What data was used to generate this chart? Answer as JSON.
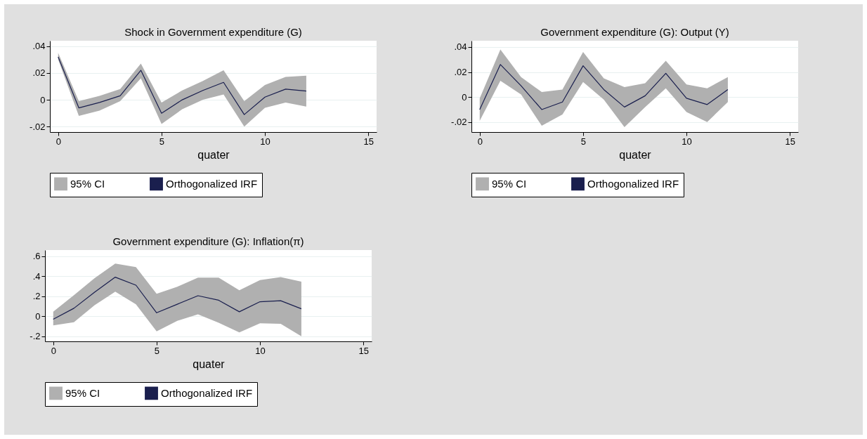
{
  "chart_data": [
    {
      "type": "line",
      "title": "Shock in Government expenditure (G)",
      "xlabel": "quater",
      "x": [
        0,
        1,
        2,
        3,
        4,
        5,
        6,
        7,
        8,
        9,
        10,
        11,
        12
      ],
      "xlim": [
        -0.4,
        15.4
      ],
      "xticks": [
        0,
        5,
        10,
        15
      ],
      "ylim": [
        -0.024,
        0.044
      ],
      "yticks": [
        {
          "value": -0.02,
          "label": "-.02"
        },
        {
          "value": 0,
          "label": "0"
        },
        {
          "value": 0.02,
          "label": ".02"
        },
        {
          "value": 0.04,
          "label": ".04"
        }
      ],
      "grid": "y",
      "legend": "bottom",
      "annotations": [
        "95% CI"
      ],
      "series": [
        {
          "name": "Orthogonalized IRF",
          "type": "line",
          "color": "#1a1f4e",
          "values": [
            0.032,
            -0.006,
            -0.002,
            0.003,
            0.022,
            -0.01,
            0.0,
            0.007,
            0.013,
            -0.011,
            0.002,
            0.008,
            0.0065
          ],
          "lower": [
            0.03,
            -0.012,
            -0.008,
            -0.001,
            0.016,
            -0.018,
            -0.007,
            0.0,
            0.004,
            -0.02,
            -0.006,
            -0.002,
            -0.005
          ],
          "upper": [
            0.035,
            -0.001,
            0.003,
            0.008,
            0.027,
            -0.002,
            0.007,
            0.014,
            0.022,
            -0.001,
            0.011,
            0.017,
            0.018
          ]
        }
      ]
    },
    {
      "type": "line",
      "title": "Government expenditure (G): Output (Y)",
      "xlabel": "quater",
      "x": [
        0,
        1,
        2,
        3,
        4,
        5,
        6,
        7,
        8,
        9,
        10,
        11,
        12
      ],
      "xlim": [
        -0.4,
        15.4
      ],
      "xticks": [
        0,
        5,
        10,
        15
      ],
      "ylim": [
        -0.028,
        0.045
      ],
      "yticks": [
        {
          "value": -0.02,
          "label": "-.02"
        },
        {
          "value": 0,
          "label": "0"
        },
        {
          "value": 0.02,
          "label": ".02"
        },
        {
          "value": 0.04,
          "label": ".04"
        }
      ],
      "grid": "y",
      "legend": "bottom",
      "annotations": [
        "95% CI"
      ],
      "series": [
        {
          "name": "Orthogonalized IRF",
          "type": "line",
          "color": "#1a1f4e",
          "values": [
            -0.01,
            0.026,
            0.009,
            -0.01,
            -0.004,
            0.025,
            0.006,
            -0.008,
            0.001,
            0.019,
            -0.001,
            -0.006,
            0.006
          ],
          "lower": [
            -0.019,
            0.013,
            0.002,
            -0.023,
            -0.014,
            0.012,
            -0.002,
            -0.024,
            -0.008,
            0.007,
            -0.012,
            -0.02,
            -0.004
          ],
          "upper": [
            -0.001,
            0.038,
            0.016,
            0.004,
            0.006,
            0.036,
            0.015,
            0.008,
            0.011,
            0.029,
            0.01,
            0.007,
            0.016
          ]
        }
      ]
    },
    {
      "type": "line",
      "title": "Government expenditure (G): Inflation(π)",
      "xlabel": "quater",
      "x": [
        0,
        1,
        2,
        3,
        4,
        5,
        6,
        7,
        8,
        9,
        10,
        11,
        12
      ],
      "xlim": [
        -0.4,
        15.4
      ],
      "xticks": [
        0,
        5,
        10,
        15
      ],
      "ylim": [
        -0.25,
        0.66
      ],
      "yticks": [
        {
          "value": -0.2,
          "label": "-.2"
        },
        {
          "value": 0,
          "label": "0"
        },
        {
          "value": 0.2,
          "label": ".2"
        },
        {
          "value": 0.4,
          "label": ".4"
        },
        {
          "value": 0.6,
          "label": ".6"
        }
      ],
      "grid": "y",
      "legend": "bottom",
      "annotations": [
        "95% CI"
      ],
      "series": [
        {
          "name": "Orthogonalized IRF",
          "type": "line",
          "color": "#1a1f4e",
          "values": [
            -0.03,
            0.08,
            0.24,
            0.39,
            0.31,
            0.035,
            0.12,
            0.205,
            0.16,
            0.045,
            0.145,
            0.155,
            0.075
          ],
          "lower": [
            -0.09,
            -0.06,
            0.11,
            0.245,
            0.12,
            -0.15,
            -0.045,
            0.02,
            -0.065,
            -0.16,
            -0.07,
            -0.075,
            -0.2
          ],
          "upper": [
            0.045,
            0.21,
            0.38,
            0.525,
            0.49,
            0.225,
            0.295,
            0.385,
            0.385,
            0.26,
            0.36,
            0.39,
            0.345
          ]
        }
      ]
    }
  ]
}
